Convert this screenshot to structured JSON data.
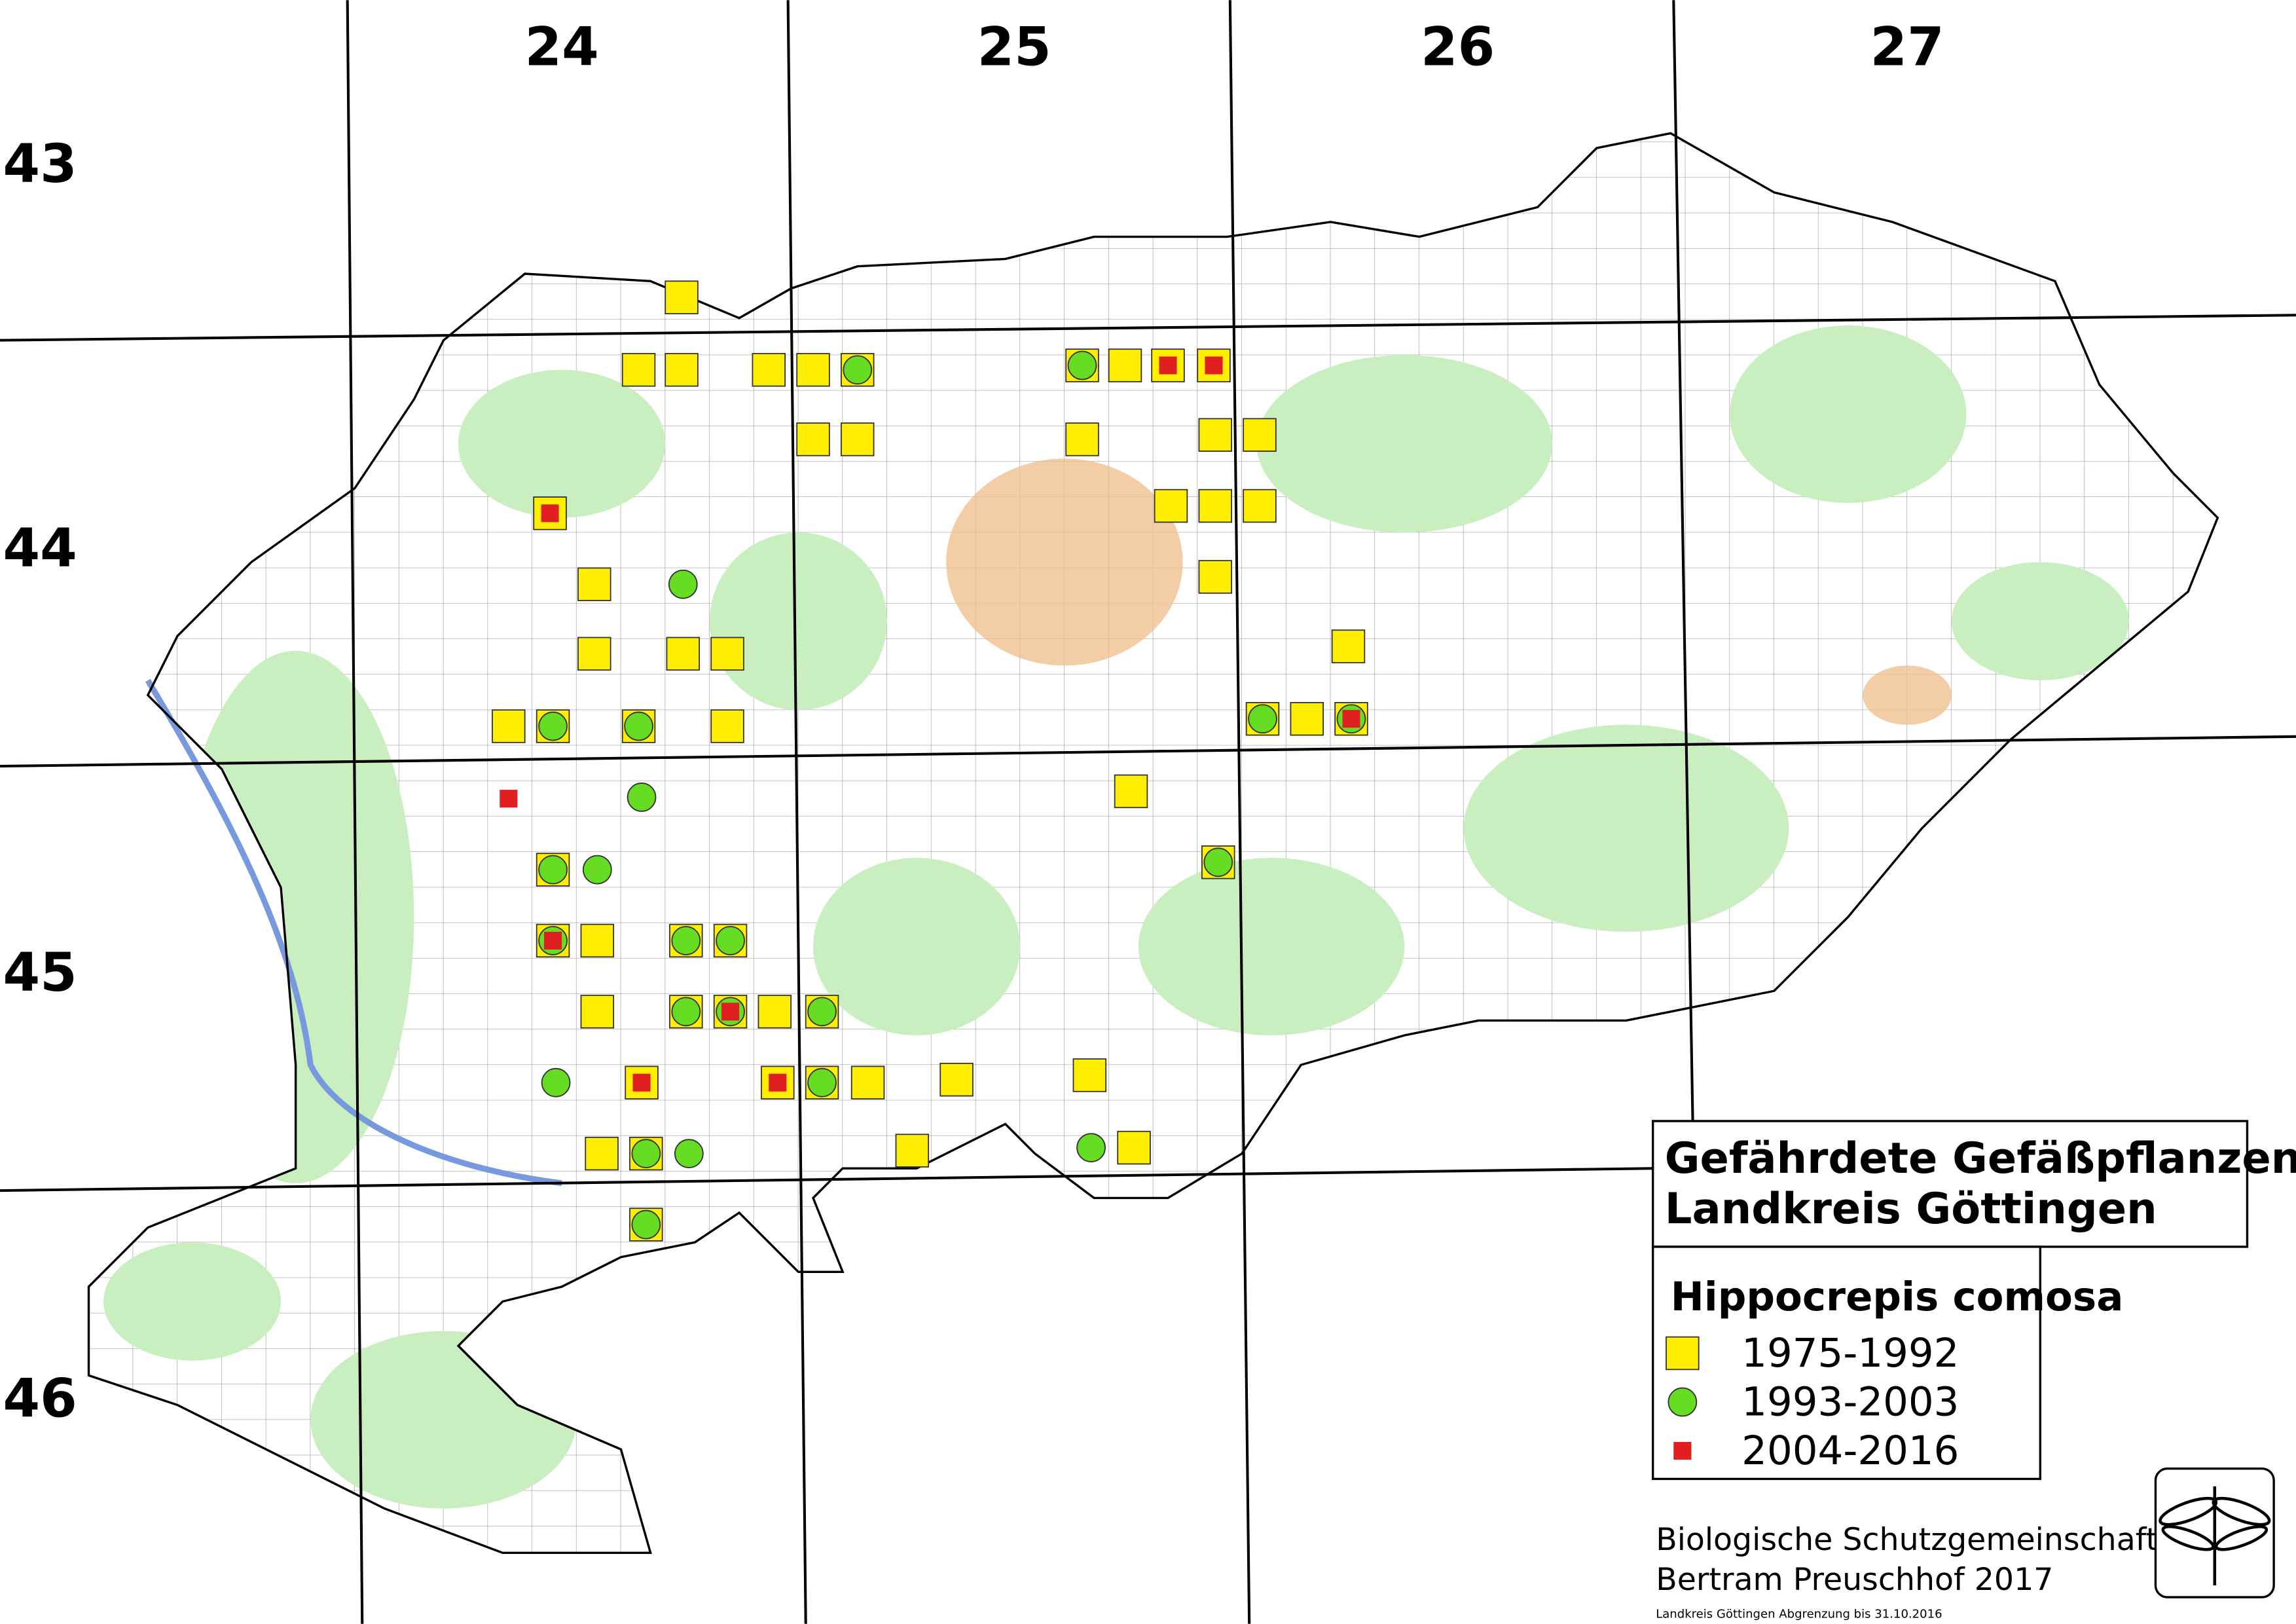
{
  "grid_labels": {
    "columns": [
      "24",
      "25",
      "26",
      "27"
    ],
    "rows": [
      "43",
      "44",
      "45",
      "46"
    ]
  },
  "title": {
    "line1": "Gefährdete Gefäßpflanzen",
    "line2": "Landkreis Göttingen"
  },
  "legend": {
    "species": "Hippocrepis comosa",
    "entries": [
      "1975-1992",
      "1993-2003",
      "2004-2016"
    ]
  },
  "credits": {
    "line1": "Biologische Schutzgemeinschaft",
    "line2": "Bertram Preuschhof 2017",
    "note": "Landkreis Göttingen Abgrenzung bis 31.10.2016"
  }
}
